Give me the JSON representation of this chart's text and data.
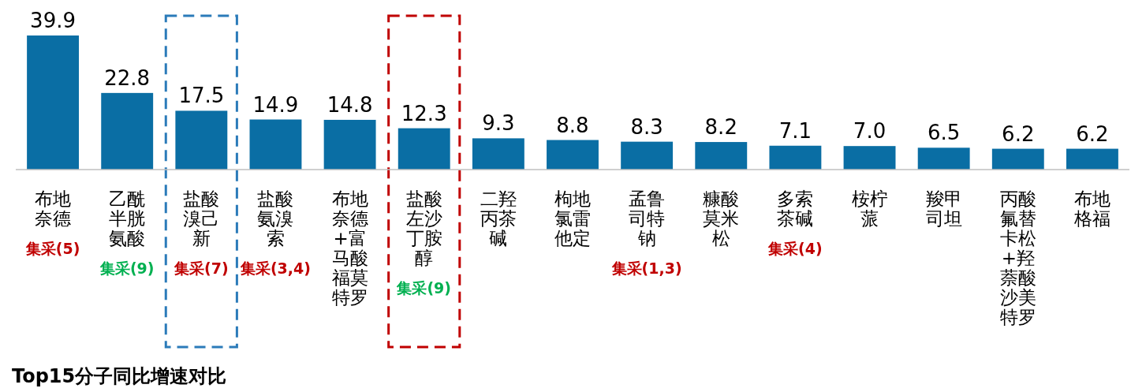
{
  "chart_data": {
    "type": "bar",
    "title": "Top15分子同比增速对比",
    "categories": [
      "布地奈德",
      "乙酰半胱氨酸",
      "盐酸溴己新",
      "盐酸氨溴索",
      "布地奈德+富马酸福莫特罗",
      "盐酸左沙丁胺醇",
      "二羟丙茶碱",
      "枸地氯雷他定",
      "孟鲁司特钠",
      "糠酸莫米松",
      "多索茶碱",
      "桉柠蒎",
      "羧甲司坦",
      "丙酸氟替卡松+羟萘酸沙美特罗",
      "布地格福"
    ],
    "values": [
      39.9,
      22.8,
      17.5,
      14.9,
      14.8,
      12.3,
      9.3,
      8.8,
      8.3,
      8.2,
      7.1,
      7.0,
      6.5,
      6.2,
      6.2
    ],
    "color": "#0a6ea4",
    "value_labels": [
      "39.9",
      "22.8",
      "17.5",
      "14.9",
      "14.8",
      "12.3",
      "9.3",
      "8.8",
      "8.3",
      "8.2",
      "7.1",
      "7.0",
      "6.5",
      "6.2",
      "6.2"
    ],
    "annotations": [
      "集采(5)",
      "集采(9)",
      "集采(7)",
      "集采(3,4)",
      "集采(9)",
      "集采(1,3)",
      "集采(4)"
    ]
  }
}
